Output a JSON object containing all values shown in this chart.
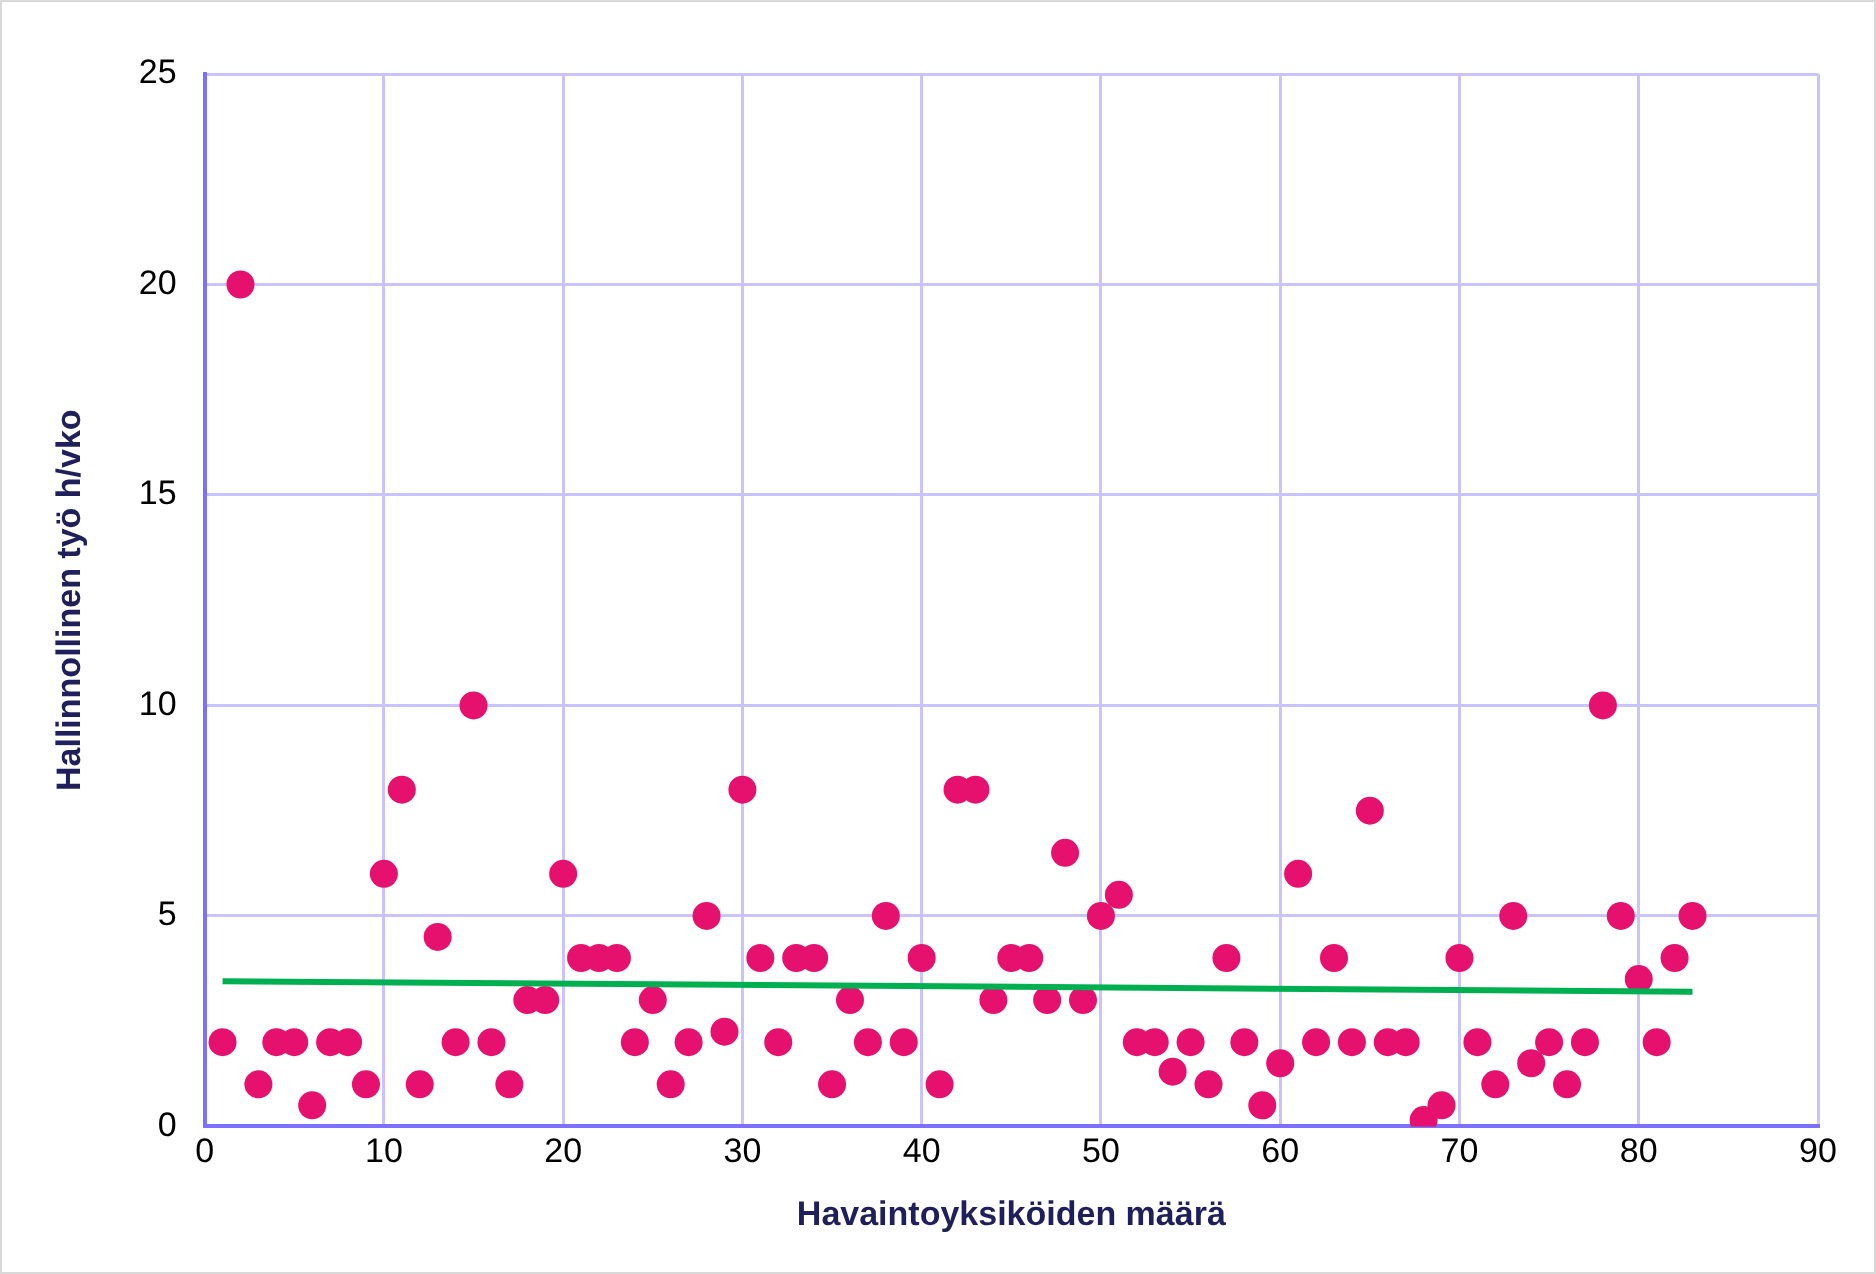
{
  "chart_data": {
    "type": "scatter",
    "xlabel": "Havaintoyksiköiden määrä",
    "ylabel": "Hallinnollinen työ h/vko",
    "xlim": [
      0,
      90
    ],
    "xticks": [
      0,
      10,
      20,
      30,
      40,
      50,
      60,
      70,
      80,
      90
    ],
    "ylim": [
      0,
      25
    ],
    "yticks": [
      0,
      5,
      10,
      15,
      20,
      25
    ],
    "grid": true,
    "legend": false,
    "marker": "circle",
    "series": [
      {
        "type": "scatter",
        "color": "#e6106e",
        "x": [
          1,
          2,
          3,
          4,
          5,
          6,
          7,
          8,
          9,
          10,
          11,
          12,
          13,
          14,
          15,
          16,
          17,
          18,
          19,
          20,
          21,
          22,
          23,
          24,
          25,
          26,
          27,
          28,
          29,
          30,
          31,
          32,
          33,
          34,
          35,
          36,
          37,
          38,
          39,
          40,
          41,
          42,
          43,
          44,
          45,
          46,
          47,
          48,
          49,
          50,
          51,
          52,
          53,
          54,
          55,
          56,
          57,
          58,
          59,
          60,
          61,
          62,
          63,
          64,
          65,
          66,
          67,
          68,
          69,
          70,
          71,
          72,
          73,
          74,
          75,
          76,
          77,
          78,
          79,
          80,
          81,
          82,
          83
        ],
        "values": [
          2,
          20,
          1,
          2,
          2,
          0.5,
          2,
          2,
          1,
          6,
          8,
          1,
          4.5,
          2,
          10,
          2,
          1,
          3,
          3,
          6,
          4,
          4,
          4,
          2,
          3,
          1,
          2,
          5,
          2.25,
          8,
          4,
          2,
          4,
          4,
          1,
          3,
          2,
          5,
          2,
          4,
          1,
          8,
          8,
          3,
          4,
          4,
          3,
          6.5,
          3,
          5,
          5.5,
          2,
          2,
          1.3,
          2,
          1,
          4,
          2,
          0.5,
          1.5,
          6,
          2,
          4,
          2,
          7.5,
          2,
          2,
          0.15,
          0.5,
          4,
          2,
          1,
          5,
          1.5,
          2,
          1,
          2,
          10,
          5,
          3.5,
          2,
          4,
          5
        ]
      },
      {
        "type": "line",
        "marker": "none",
        "color": "#00b050",
        "x": [
          1,
          83
        ],
        "values": [
          3.45,
          3.2
        ]
      }
    ]
  }
}
